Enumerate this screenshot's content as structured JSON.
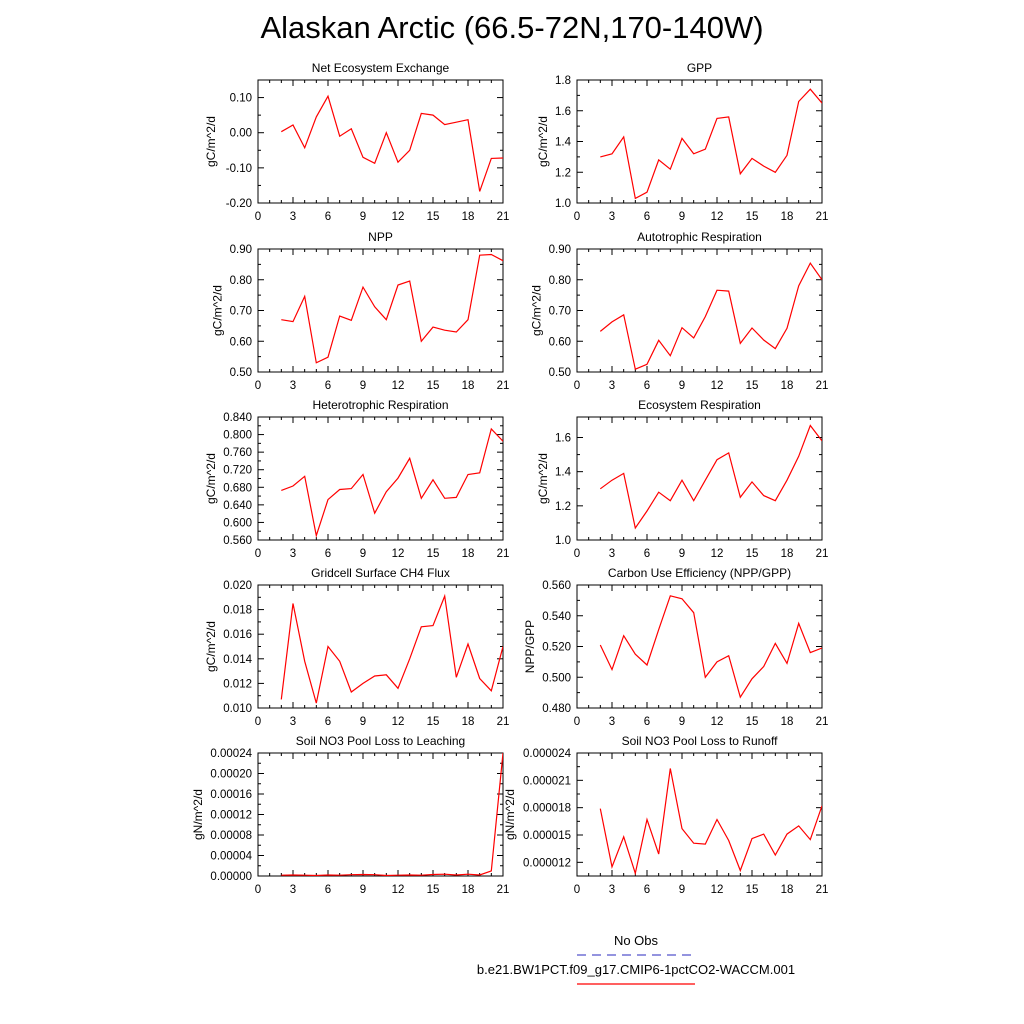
{
  "title": "Alaskan Arctic (66.5-72N,170-140W)",
  "legend": {
    "obs_label": "No Obs",
    "obs_color": "#5555cc",
    "case_label": "b.e21.BW1PCT.f09_g17.CMIP6-1pctCO2-WACCM.001",
    "case_color": "#ff0000"
  },
  "chart_data": [
    {
      "type": "line",
      "title": "Net Ecosystem Exchange",
      "ylabel": "gC/m^2/d",
      "xlim": [
        0,
        21
      ],
      "ylim": [
        -0.2,
        0.15
      ],
      "xticks": [
        0,
        3,
        6,
        9,
        12,
        15,
        18,
        21
      ],
      "xtick_labels": [
        "0",
        "3",
        "6",
        "9",
        "12",
        "15",
        "18",
        "21"
      ],
      "yticks": [
        -0.2,
        -0.1,
        0.0,
        0.1
      ],
      "ytick_labels": [
        "-0.20",
        "-0.10",
        "0.00",
        "0.10"
      ],
      "series": [
        {
          "color": "#ff0000",
          "x": [
            2,
            3,
            4,
            5,
            6,
            7,
            8,
            9,
            10,
            11,
            12,
            13,
            14,
            15,
            16,
            17,
            18,
            19,
            20,
            21
          ],
          "y": [
            0.003,
            0.022,
            -0.043,
            0.045,
            0.104,
            -0.01,
            0.011,
            -0.07,
            -0.087,
            0.0,
            -0.084,
            -0.05,
            0.055,
            0.05,
            0.023,
            0.03,
            0.037,
            -0.167,
            -0.073,
            -0.072
          ]
        }
      ]
    },
    {
      "type": "line",
      "title": "GPP",
      "ylabel": "gC/m^2/d",
      "xlim": [
        0,
        21
      ],
      "ylim": [
        1.0,
        1.8
      ],
      "xticks": [
        0,
        3,
        6,
        9,
        12,
        15,
        18,
        21
      ],
      "xtick_labels": [
        "0",
        "3",
        "6",
        "9",
        "12",
        "15",
        "18",
        "21"
      ],
      "yticks": [
        1.0,
        1.2,
        1.4,
        1.6,
        1.8
      ],
      "ytick_labels": [
        "1.0",
        "1.2",
        "1.4",
        "1.6",
        "1.8"
      ],
      "series": [
        {
          "color": "#ff0000",
          "x": [
            2,
            3,
            4,
            5,
            6,
            7,
            8,
            9,
            10,
            11,
            12,
            13,
            14,
            15,
            16,
            17,
            18,
            19,
            20,
            21
          ],
          "y": [
            1.3,
            1.32,
            1.43,
            1.03,
            1.07,
            1.28,
            1.22,
            1.42,
            1.32,
            1.35,
            1.55,
            1.56,
            1.19,
            1.29,
            1.24,
            1.2,
            1.31,
            1.66,
            1.74,
            1.65
          ]
        }
      ]
    },
    {
      "type": "line",
      "title": "NPP",
      "ylabel": "gC/m^2/d",
      "xlim": [
        0,
        21
      ],
      "ylim": [
        0.5,
        0.9
      ],
      "xticks": [
        0,
        3,
        6,
        9,
        12,
        15,
        18,
        21
      ],
      "xtick_labels": [
        "0",
        "3",
        "6",
        "9",
        "12",
        "15",
        "18",
        "21"
      ],
      "yticks": [
        0.5,
        0.6,
        0.7,
        0.8,
        0.9
      ],
      "ytick_labels": [
        "0.50",
        "0.60",
        "0.70",
        "0.80",
        "0.90"
      ],
      "series": [
        {
          "color": "#ff0000",
          "x": [
            2,
            3,
            4,
            5,
            6,
            7,
            8,
            9,
            10,
            11,
            12,
            13,
            14,
            15,
            16,
            17,
            18,
            19,
            20,
            21
          ],
          "y": [
            0.67,
            0.664,
            0.746,
            0.53,
            0.548,
            0.682,
            0.668,
            0.776,
            0.712,
            0.67,
            0.783,
            0.796,
            0.6,
            0.646,
            0.636,
            0.63,
            0.67,
            0.88,
            0.882,
            0.862
          ]
        }
      ]
    },
    {
      "type": "line",
      "title": "Autotrophic Respiration",
      "ylabel": "gC/m^2/d",
      "xlim": [
        0,
        21
      ],
      "ylim": [
        0.5,
        0.9
      ],
      "xticks": [
        0,
        3,
        6,
        9,
        12,
        15,
        18,
        21
      ],
      "xtick_labels": [
        "0",
        "3",
        "6",
        "9",
        "12",
        "15",
        "18",
        "21"
      ],
      "yticks": [
        0.5,
        0.6,
        0.7,
        0.8,
        0.9
      ],
      "ytick_labels": [
        "0.50",
        "0.60",
        "0.70",
        "0.80",
        "0.90"
      ],
      "series": [
        {
          "color": "#ff0000",
          "x": [
            2,
            3,
            4,
            5,
            6,
            7,
            8,
            9,
            10,
            11,
            12,
            13,
            14,
            15,
            16,
            17,
            18,
            19,
            20,
            21
          ],
          "y": [
            0.632,
            0.663,
            0.686,
            0.509,
            0.525,
            0.603,
            0.553,
            0.644,
            0.611,
            0.68,
            0.766,
            0.763,
            0.593,
            0.643,
            0.604,
            0.576,
            0.642,
            0.78,
            0.854,
            0.8
          ]
        }
      ]
    },
    {
      "type": "line",
      "title": "Heterotrophic Respiration",
      "ylabel": "gC/m^2/d",
      "xlim": [
        0,
        21
      ],
      "ylim": [
        0.56,
        0.84
      ],
      "xticks": [
        0,
        3,
        6,
        9,
        12,
        15,
        18,
        21
      ],
      "xtick_labels": [
        "0",
        "3",
        "6",
        "9",
        "12",
        "15",
        "18",
        "21"
      ],
      "yticks": [
        0.56,
        0.6,
        0.64,
        0.68,
        0.72,
        0.76,
        0.8,
        0.84
      ],
      "ytick_labels": [
        "0.560",
        "0.600",
        "0.640",
        "0.680",
        "0.720",
        "0.760",
        "0.800",
        "0.840"
      ],
      "series": [
        {
          "color": "#ff0000",
          "x": [
            2,
            3,
            4,
            5,
            6,
            7,
            8,
            9,
            10,
            11,
            12,
            13,
            14,
            15,
            16,
            17,
            18,
            19,
            20,
            21
          ],
          "y": [
            0.673,
            0.683,
            0.705,
            0.57,
            0.652,
            0.675,
            0.677,
            0.709,
            0.621,
            0.67,
            0.701,
            0.746,
            0.655,
            0.697,
            0.655,
            0.657,
            0.709,
            0.713,
            0.813,
            0.785
          ]
        }
      ]
    },
    {
      "type": "line",
      "title": "Ecosystem Respiration",
      "ylabel": "gC/m^2/d",
      "xlim": [
        0,
        21
      ],
      "ylim": [
        1.0,
        1.72
      ],
      "xticks": [
        0,
        3,
        6,
        9,
        12,
        15,
        18,
        21
      ],
      "xtick_labels": [
        "0",
        "3",
        "6",
        "9",
        "12",
        "15",
        "18",
        "21"
      ],
      "yticks": [
        1.0,
        1.2,
        1.4,
        1.6
      ],
      "ytick_labels": [
        "1.0",
        "1.2",
        "1.4",
        "1.6"
      ],
      "series": [
        {
          "color": "#ff0000",
          "x": [
            2,
            3,
            4,
            5,
            6,
            7,
            8,
            9,
            10,
            11,
            12,
            13,
            14,
            15,
            16,
            17,
            18,
            19,
            20,
            21
          ],
          "y": [
            1.3,
            1.35,
            1.39,
            1.07,
            1.17,
            1.28,
            1.23,
            1.35,
            1.23,
            1.35,
            1.47,
            1.51,
            1.25,
            1.34,
            1.26,
            1.23,
            1.35,
            1.49,
            1.67,
            1.58
          ]
        }
      ]
    },
    {
      "type": "line",
      "title": "Gridcell Surface CH4 Flux",
      "ylabel": "gC/m^2/d",
      "xlim": [
        0,
        21
      ],
      "ylim": [
        0.01,
        0.02
      ],
      "xticks": [
        0,
        3,
        6,
        9,
        12,
        15,
        18,
        21
      ],
      "xtick_labels": [
        "0",
        "3",
        "6",
        "9",
        "12",
        "15",
        "18",
        "21"
      ],
      "yticks": [
        0.01,
        0.012,
        0.014,
        0.016,
        0.018,
        0.02
      ],
      "ytick_labels": [
        "0.010",
        "0.012",
        "0.014",
        "0.016",
        "0.018",
        "0.020"
      ],
      "series": [
        {
          "color": "#ff0000",
          "x": [
            2,
            3,
            4,
            5,
            6,
            7,
            8,
            9,
            10,
            11,
            12,
            13,
            14,
            15,
            16,
            17,
            18,
            19,
            20,
            21
          ],
          "y": [
            0.0107,
            0.0185,
            0.0138,
            0.0104,
            0.015,
            0.0138,
            0.0113,
            0.012,
            0.0126,
            0.0127,
            0.0116,
            0.014,
            0.0166,
            0.0167,
            0.0191,
            0.0125,
            0.0152,
            0.0124,
            0.0114,
            0.015
          ]
        }
      ]
    },
    {
      "type": "line",
      "title": "Carbon Use Efficiency (NPP/GPP)",
      "ylabel": "NPP/GPP",
      "xlim": [
        0,
        21
      ],
      "ylim": [
        0.48,
        0.56
      ],
      "xticks": [
        0,
        3,
        6,
        9,
        12,
        15,
        18,
        21
      ],
      "xtick_labels": [
        "0",
        "3",
        "6",
        "9",
        "12",
        "15",
        "18",
        "21"
      ],
      "yticks": [
        0.48,
        0.5,
        0.52,
        0.54,
        0.56
      ],
      "ytick_labels": [
        "0.480",
        "0.500",
        "0.520",
        "0.540",
        "0.560"
      ],
      "series": [
        {
          "color": "#ff0000",
          "x": [
            2,
            3,
            4,
            5,
            6,
            7,
            8,
            9,
            10,
            11,
            12,
            13,
            14,
            15,
            16,
            17,
            18,
            19,
            20,
            21
          ],
          "y": [
            0.521,
            0.505,
            0.527,
            0.515,
            0.508,
            0.531,
            0.553,
            0.551,
            0.542,
            0.5,
            0.51,
            0.514,
            0.487,
            0.499,
            0.507,
            0.522,
            0.509,
            0.535,
            0.516,
            0.519
          ]
        }
      ]
    },
    {
      "type": "line",
      "title": "Soil NO3 Pool Loss to Leaching",
      "ylabel": "gN/m^2/d",
      "xlim": [
        0,
        21
      ],
      "ylim": [
        0,
        0.00024
      ],
      "xticks": [
        0,
        3,
        6,
        9,
        12,
        15,
        18,
        21
      ],
      "xtick_labels": [
        "0",
        "3",
        "6",
        "9",
        "12",
        "15",
        "18",
        "21"
      ],
      "yticks": [
        0,
        4e-05,
        8e-05,
        0.00012,
        0.00016,
        0.0002,
        0.00024
      ],
      "ytick_labels": [
        "0.00000",
        "0.00004",
        "0.00008",
        "0.00012",
        "0.00016",
        "0.00020",
        "0.00024"
      ],
      "series": [
        {
          "color": "#ff0000",
          "x": [
            2,
            3,
            4,
            5,
            6,
            7,
            8,
            9,
            10,
            11,
            12,
            13,
            14,
            15,
            16,
            17,
            18,
            19,
            20,
            21
          ],
          "y": [
            1.5e-06,
            2e-06,
            1.5e-06,
            1e-06,
            2e-06,
            1.5e-06,
            2.5e-06,
            3e-06,
            2.5e-06,
            1e-06,
            1.5e-06,
            2e-06,
            1.5e-06,
            3e-06,
            3.5e-06,
            2e-06,
            3.5e-06,
            2e-06,
            1e-05,
            0.00024
          ]
        }
      ]
    },
    {
      "type": "line",
      "title": "Soil NO3 Pool Loss to Runoff",
      "ylabel": "gN/m^2/d",
      "xlim": [
        0,
        21
      ],
      "ylim": [
        1.05e-05,
        2.4e-05
      ],
      "xticks": [
        0,
        3,
        6,
        9,
        12,
        15,
        18,
        21
      ],
      "xtick_labels": [
        "0",
        "3",
        "6",
        "9",
        "12",
        "15",
        "18",
        "21"
      ],
      "yticks": [
        1.2e-05,
        1.5e-05,
        1.8e-05,
        2.1e-05,
        2.4e-05
      ],
      "ytick_labels": [
        "0.000012",
        "0.000015",
        "0.000018",
        "0.000021",
        "0.000024"
      ],
      "series": [
        {
          "color": "#ff0000",
          "x": [
            2,
            3,
            4,
            5,
            6,
            7,
            8,
            9,
            10,
            11,
            12,
            13,
            14,
            15,
            16,
            17,
            18,
            19,
            20,
            21
          ],
          "y": [
            1.79e-05,
            1.15e-05,
            1.48e-05,
            1.08e-05,
            1.67e-05,
            1.29e-05,
            2.23e-05,
            1.57e-05,
            1.41e-05,
            1.4e-05,
            1.67e-05,
            1.44e-05,
            1.11e-05,
            1.46e-05,
            1.51e-05,
            1.28e-05,
            1.51e-05,
            1.6e-05,
            1.45e-05,
            1.82e-05
          ]
        }
      ]
    }
  ]
}
